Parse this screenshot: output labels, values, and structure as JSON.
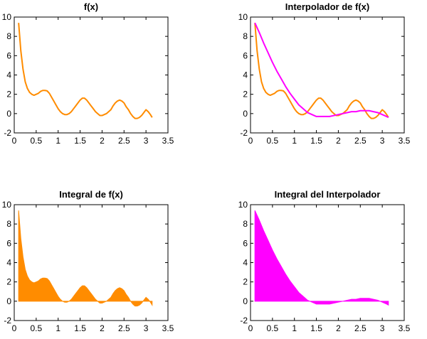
{
  "chart_data": [
    {
      "type": "line",
      "title": "f(x)",
      "xlim": [
        0,
        3.5
      ],
      "ylim": [
        -2,
        10
      ],
      "xticks": [
        "0",
        "0.5",
        "1",
        "1.5",
        "2",
        "2.5",
        "3",
        "3.5"
      ],
      "yticks": [
        "-2",
        "0",
        "2",
        "4",
        "6",
        "8",
        "10"
      ],
      "grid": false,
      "series": [
        {
          "color": "#ff8c00",
          "fill": false,
          "x": [
            0.1,
            0.15,
            0.2,
            0.25,
            0.3,
            0.35,
            0.4,
            0.45,
            0.5,
            0.55,
            0.6,
            0.65,
            0.7,
            0.75,
            0.8,
            0.85,
            0.9,
            0.95,
            1.0,
            1.05,
            1.1,
            1.15,
            1.2,
            1.25,
            1.3,
            1.35,
            1.4,
            1.45,
            1.5,
            1.55,
            1.6,
            1.65,
            1.7,
            1.75,
            1.8,
            1.85,
            1.9,
            1.95,
            2.0,
            2.05,
            2.1,
            2.15,
            2.2,
            2.25,
            2.3,
            2.35,
            2.4,
            2.45,
            2.5,
            2.55,
            2.6,
            2.65,
            2.7,
            2.75,
            2.8,
            2.85,
            2.9,
            2.95,
            3.0,
            3.05,
            3.1,
            3.14
          ],
          "y": [
            9.4,
            6.5,
            4.6,
            3.3,
            2.6,
            2.2,
            2.0,
            1.9,
            2.0,
            2.1,
            2.3,
            2.4,
            2.4,
            2.35,
            2.1,
            1.7,
            1.3,
            0.9,
            0.5,
            0.2,
            0.0,
            -0.1,
            -0.1,
            0.0,
            0.2,
            0.5,
            0.8,
            1.1,
            1.4,
            1.6,
            1.6,
            1.4,
            1.1,
            0.8,
            0.5,
            0.2,
            0.0,
            -0.2,
            -0.2,
            -0.1,
            0.0,
            0.2,
            0.4,
            0.8,
            1.1,
            1.3,
            1.4,
            1.3,
            1.1,
            0.7,
            0.4,
            0.0,
            -0.3,
            -0.5,
            -0.5,
            -0.4,
            -0.2,
            0.1,
            0.4,
            0.2,
            -0.1,
            -0.4
          ]
        }
      ]
    },
    {
      "type": "line",
      "title": "Interpolador de f(x)",
      "xlim": [
        0,
        3.5
      ],
      "ylim": [
        -2,
        10
      ],
      "xticks": [
        "0",
        "0.5",
        "1",
        "1.5",
        "2",
        "2.5",
        "3",
        "3.5"
      ],
      "yticks": [
        "-2",
        "0",
        "2",
        "4",
        "6",
        "8",
        "10"
      ],
      "grid": false,
      "series": [
        {
          "color": "#ff8c00",
          "fill": false,
          "x": [
            0.1,
            0.15,
            0.2,
            0.25,
            0.3,
            0.35,
            0.4,
            0.45,
            0.5,
            0.55,
            0.6,
            0.65,
            0.7,
            0.75,
            0.8,
            0.85,
            0.9,
            0.95,
            1.0,
            1.05,
            1.1,
            1.15,
            1.2,
            1.25,
            1.3,
            1.35,
            1.4,
            1.45,
            1.5,
            1.55,
            1.6,
            1.65,
            1.7,
            1.75,
            1.8,
            1.85,
            1.9,
            1.95,
            2.0,
            2.05,
            2.1,
            2.15,
            2.2,
            2.25,
            2.3,
            2.35,
            2.4,
            2.45,
            2.5,
            2.55,
            2.6,
            2.65,
            2.7,
            2.75,
            2.8,
            2.85,
            2.9,
            2.95,
            3.0,
            3.05,
            3.1,
            3.14
          ],
          "y": [
            9.4,
            6.5,
            4.6,
            3.3,
            2.6,
            2.2,
            2.0,
            1.9,
            2.0,
            2.1,
            2.3,
            2.4,
            2.4,
            2.35,
            2.1,
            1.7,
            1.3,
            0.9,
            0.5,
            0.2,
            0.0,
            -0.1,
            -0.1,
            0.0,
            0.2,
            0.5,
            0.8,
            1.1,
            1.4,
            1.6,
            1.6,
            1.4,
            1.1,
            0.8,
            0.5,
            0.2,
            0.0,
            -0.2,
            -0.2,
            -0.1,
            0.0,
            0.2,
            0.4,
            0.8,
            1.1,
            1.3,
            1.4,
            1.3,
            1.1,
            0.7,
            0.4,
            0.0,
            -0.3,
            -0.5,
            -0.5,
            -0.4,
            -0.2,
            0.1,
            0.4,
            0.2,
            -0.1,
            -0.4
          ]
        },
        {
          "color": "#ff00ff",
          "fill": false,
          "x": [
            0.1,
            0.2,
            0.3,
            0.4,
            0.5,
            0.6,
            0.7,
            0.8,
            0.9,
            1.0,
            1.1,
            1.2,
            1.3,
            1.4,
            1.5,
            1.6,
            1.7,
            1.8,
            1.9,
            2.0,
            2.1,
            2.2,
            2.3,
            2.4,
            2.5,
            2.6,
            2.7,
            2.8,
            2.9,
            3.0,
            3.1,
            3.14
          ],
          "y": [
            9.4,
            8.4,
            7.3,
            6.3,
            5.3,
            4.4,
            3.6,
            2.8,
            2.1,
            1.5,
            0.9,
            0.5,
            0.1,
            -0.1,
            -0.3,
            -0.3,
            -0.3,
            -0.3,
            -0.2,
            -0.1,
            0.0,
            0.1,
            0.2,
            0.2,
            0.3,
            0.3,
            0.3,
            0.2,
            0.1,
            -0.1,
            -0.3,
            -0.4
          ]
        }
      ]
    },
    {
      "type": "area",
      "title": "Integral de f(x)",
      "xlim": [
        0,
        3.5
      ],
      "ylim": [
        -2,
        10
      ],
      "xticks": [
        "0",
        "0.5",
        "1",
        "1.5",
        "2",
        "2.5",
        "3",
        "3.5"
      ],
      "yticks": [
        "-2",
        "0",
        "2",
        "4",
        "6",
        "8",
        "10"
      ],
      "grid": false,
      "series": [
        {
          "color": "#ff8c00",
          "fill": true,
          "x": [
            0.1,
            0.15,
            0.2,
            0.25,
            0.3,
            0.35,
            0.4,
            0.45,
            0.5,
            0.55,
            0.6,
            0.65,
            0.7,
            0.75,
            0.8,
            0.85,
            0.9,
            0.95,
            1.0,
            1.05,
            1.1,
            1.15,
            1.2,
            1.25,
            1.3,
            1.35,
            1.4,
            1.45,
            1.5,
            1.55,
            1.6,
            1.65,
            1.7,
            1.75,
            1.8,
            1.85,
            1.9,
            1.95,
            2.0,
            2.05,
            2.1,
            2.15,
            2.2,
            2.25,
            2.3,
            2.35,
            2.4,
            2.45,
            2.5,
            2.55,
            2.6,
            2.65,
            2.7,
            2.75,
            2.8,
            2.85,
            2.9,
            2.95,
            3.0,
            3.05,
            3.1,
            3.14
          ],
          "y": [
            9.4,
            6.5,
            4.6,
            3.3,
            2.6,
            2.2,
            2.0,
            1.9,
            2.0,
            2.1,
            2.3,
            2.4,
            2.4,
            2.35,
            2.1,
            1.7,
            1.3,
            0.9,
            0.5,
            0.2,
            0.0,
            -0.1,
            -0.1,
            0.0,
            0.2,
            0.5,
            0.8,
            1.1,
            1.4,
            1.6,
            1.6,
            1.4,
            1.1,
            0.8,
            0.5,
            0.2,
            0.0,
            -0.2,
            -0.2,
            -0.1,
            0.0,
            0.2,
            0.4,
            0.8,
            1.1,
            1.3,
            1.4,
            1.3,
            1.1,
            0.7,
            0.4,
            0.0,
            -0.3,
            -0.5,
            -0.5,
            -0.4,
            -0.2,
            0.1,
            0.4,
            0.2,
            -0.1,
            -0.4
          ]
        }
      ]
    },
    {
      "type": "area",
      "title": "Integral del Interpolador",
      "xlim": [
        0,
        3.5
      ],
      "ylim": [
        -2,
        10
      ],
      "xticks": [
        "0",
        "0.5",
        "1",
        "1.5",
        "2",
        "2.5",
        "3",
        "3.5"
      ],
      "yticks": [
        "-2",
        "0",
        "2",
        "4",
        "6",
        "8",
        "10"
      ],
      "grid": false,
      "series": [
        {
          "color": "#ff00ff",
          "fill": true,
          "x": [
            0.1,
            0.2,
            0.3,
            0.4,
            0.5,
            0.6,
            0.7,
            0.8,
            0.9,
            1.0,
            1.1,
            1.2,
            1.3,
            1.4,
            1.5,
            1.6,
            1.7,
            1.8,
            1.9,
            2.0,
            2.1,
            2.2,
            2.3,
            2.4,
            2.5,
            2.6,
            2.7,
            2.8,
            2.9,
            3.0,
            3.1,
            3.14
          ],
          "y": [
            9.4,
            8.4,
            7.3,
            6.3,
            5.3,
            4.4,
            3.6,
            2.8,
            2.1,
            1.5,
            0.9,
            0.5,
            0.1,
            -0.1,
            -0.3,
            -0.3,
            -0.3,
            -0.3,
            -0.2,
            -0.1,
            0.0,
            0.1,
            0.2,
            0.2,
            0.3,
            0.3,
            0.3,
            0.2,
            0.1,
            -0.1,
            -0.3,
            -0.4
          ]
        }
      ]
    }
  ]
}
